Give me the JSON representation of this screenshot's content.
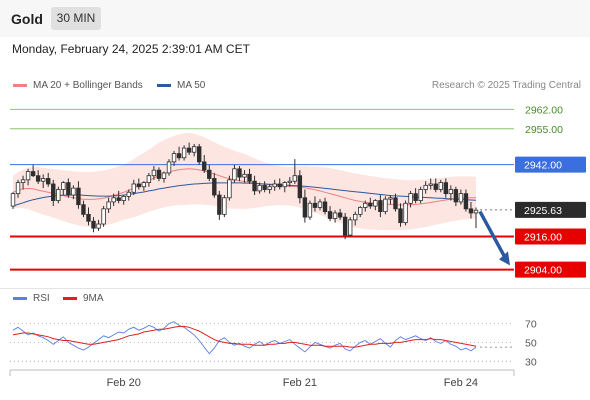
{
  "header": {
    "symbol": "Gold",
    "timeframe": "30 MIN",
    "datetime": "Monday, February 24, 2025 2:39:01 AM CET",
    "credit": "Research © 2025 Trading Central"
  },
  "legend": {
    "ma20_label": "MA 20 + Bollinger Bands",
    "ma50_label": "MA 50",
    "rsi_label": "RSI",
    "ma9_label": "9MA"
  },
  "colors": {
    "bullish": "#2e2e2e",
    "ma20": "#f08080",
    "band_fill": "#fde0dc",
    "ma50": "#2c5aa0",
    "resistance": "#8cc66d",
    "pivot": "#3b6fe0",
    "support": "#e60000",
    "rsi": "#5b7fe0",
    "rsi_ma": "#e02020",
    "arrow": "#2c5aa0"
  },
  "chart_data": [
    {
      "type": "candlestick",
      "x": [
        "Feb 20",
        "Feb 21",
        "Feb 24"
      ],
      "y_ticks": [],
      "levels": [
        {
          "name": "resistance-2",
          "value": 2962.0,
          "label": "2962.00",
          "style": "resistance"
        },
        {
          "name": "resistance-1",
          "value": 2955.0,
          "label": "2955.00",
          "style": "resistance"
        },
        {
          "name": "pivot",
          "value": 2942.0,
          "label": "2942.00",
          "style": "pivot"
        },
        {
          "name": "last-price",
          "value": 2925.63,
          "label": "2925.63",
          "style": "last"
        },
        {
          "name": "support-1",
          "value": 2916.0,
          "label": "2916.00",
          "style": "support"
        },
        {
          "name": "support-2",
          "value": 2904.0,
          "label": "2904.00",
          "style": "support"
        }
      ],
      "ylim": [
        2899.5,
        2966.5
      ],
      "candles": [
        [
          2927.0,
          2932.0,
          2926.0,
          2931.5
        ],
        [
          2931.5,
          2936.5,
          2930.0,
          2935.5
        ],
        [
          2935.5,
          2938.0,
          2933.0,
          2936.5
        ],
        [
          2936.5,
          2940.5,
          2934.5,
          2939.5
        ],
        [
          2939.5,
          2942.0,
          2937.5,
          2938.0
        ],
        [
          2938.0,
          2940.0,
          2935.0,
          2936.0
        ],
        [
          2936.0,
          2938.5,
          2933.5,
          2937.0
        ],
        [
          2937.0,
          2939.0,
          2934.0,
          2935.0
        ],
        [
          2935.0,
          2936.5,
          2927.0,
          2929.0
        ],
        [
          2929.0,
          2934.0,
          2928.0,
          2933.0
        ],
        [
          2933.0,
          2936.0,
          2931.0,
          2935.5
        ],
        [
          2935.5,
          2937.0,
          2930.0,
          2931.0
        ],
        [
          2931.0,
          2934.5,
          2929.5,
          2933.5
        ],
        [
          2933.5,
          2936.0,
          2926.0,
          2927.5
        ],
        [
          2927.5,
          2929.0,
          2923.0,
          2924.0
        ],
        [
          2924.0,
          2926.5,
          2920.0,
          2921.5
        ],
        [
          2921.5,
          2923.0,
          2917.5,
          2919.0
        ],
        [
          2919.0,
          2922.0,
          2918.0,
          2920.5
        ],
        [
          2920.5,
          2927.0,
          2919.5,
          2926.0
        ],
        [
          2926.0,
          2930.0,
          2924.5,
          2928.5
        ],
        [
          2928.5,
          2931.5,
          2927.0,
          2930.0
        ],
        [
          2930.0,
          2932.5,
          2928.0,
          2929.0
        ],
        [
          2929.0,
          2931.0,
          2927.5,
          2930.5
        ],
        [
          2930.5,
          2933.0,
          2929.0,
          2932.0
        ],
        [
          2932.0,
          2936.5,
          2931.0,
          2935.0
        ],
        [
          2935.0,
          2937.0,
          2933.0,
          2934.0
        ],
        [
          2934.0,
          2936.0,
          2932.5,
          2935.5
        ],
        [
          2935.5,
          2939.0,
          2934.0,
          2938.0
        ],
        [
          2938.0,
          2941.5,
          2936.5,
          2940.0
        ],
        [
          2940.0,
          2941.0,
          2936.0,
          2937.0
        ],
        [
          2937.0,
          2939.5,
          2935.5,
          2939.0
        ],
        [
          2939.0,
          2944.0,
          2938.0,
          2943.0
        ],
        [
          2943.0,
          2947.0,
          2941.5,
          2946.0
        ],
        [
          2946.0,
          2948.5,
          2943.5,
          2944.5
        ],
        [
          2944.5,
          2949.0,
          2943.5,
          2948.0
        ],
        [
          2948.0,
          2950.0,
          2945.5,
          2946.5
        ],
        [
          2946.5,
          2949.5,
          2945.0,
          2948.5
        ],
        [
          2948.5,
          2949.5,
          2942.0,
          2943.0
        ],
        [
          2943.0,
          2945.5,
          2939.0,
          2940.0
        ],
        [
          2940.0,
          2942.0,
          2936.0,
          2937.0
        ],
        [
          2937.0,
          2939.0,
          2930.0,
          2931.0
        ],
        [
          2931.0,
          2932.5,
          2922.0,
          2924.0
        ],
        [
          2924.0,
          2931.0,
          2923.0,
          2930.0
        ],
        [
          2930.0,
          2938.0,
          2929.0,
          2936.5
        ],
        [
          2936.5,
          2942.0,
          2935.5,
          2940.5
        ],
        [
          2940.5,
          2941.5,
          2936.0,
          2937.5
        ],
        [
          2937.5,
          2940.0,
          2935.5,
          2938.5
        ],
        [
          2938.5,
          2940.5,
          2935.0,
          2936.0
        ],
        [
          2936.0,
          2938.0,
          2931.0,
          2932.5
        ],
        [
          2932.5,
          2935.5,
          2931.5,
          2934.5
        ],
        [
          2934.5,
          2936.0,
          2932.0,
          2933.0
        ],
        [
          2933.0,
          2935.0,
          2931.5,
          2934.0
        ],
        [
          2934.0,
          2936.5,
          2932.5,
          2935.0
        ],
        [
          2935.0,
          2937.0,
          2933.0,
          2934.0
        ],
        [
          2934.0,
          2936.0,
          2932.0,
          2935.5
        ],
        [
          2935.5,
          2937.5,
          2934.0,
          2936.0
        ],
        [
          2936.0,
          2944.0,
          2935.0,
          2938.0
        ],
        [
          2938.0,
          2940.0,
          2928.0,
          2930.0
        ],
        [
          2930.0,
          2933.0,
          2921.0,
          2923.0
        ],
        [
          2923.0,
          2929.0,
          2922.0,
          2928.0
        ],
        [
          2928.0,
          2930.5,
          2925.0,
          2926.5
        ],
        [
          2926.5,
          2929.5,
          2925.5,
          2928.5
        ],
        [
          2928.5,
          2930.0,
          2924.0,
          2925.0
        ],
        [
          2925.0,
          2927.0,
          2921.5,
          2922.5
        ],
        [
          2922.5,
          2925.5,
          2921.0,
          2924.5
        ],
        [
          2924.5,
          2926.0,
          2922.0,
          2923.0
        ],
        [
          2923.0,
          2924.5,
          2915.0,
          2916.5
        ],
        [
          2916.5,
          2923.0,
          2916.0,
          2922.0
        ],
        [
          2922.0,
          2925.0,
          2920.0,
          2924.0
        ],
        [
          2924.0,
          2927.0,
          2923.0,
          2926.5
        ],
        [
          2926.5,
          2929.0,
          2925.0,
          2928.0
        ],
        [
          2928.0,
          2930.0,
          2926.0,
          2927.0
        ],
        [
          2927.0,
          2929.5,
          2925.5,
          2929.0
        ],
        [
          2929.0,
          2931.0,
          2923.0,
          2925.0
        ],
        [
          2925.0,
          2930.5,
          2924.0,
          2929.5
        ],
        [
          2929.5,
          2931.0,
          2927.5,
          2930.0
        ],
        [
          2930.0,
          2931.5,
          2925.0,
          2926.0
        ],
        [
          2926.0,
          2928.0,
          2919.5,
          2921.0
        ],
        [
          2921.0,
          2929.0,
          2920.0,
          2928.0
        ],
        [
          2928.0,
          2932.5,
          2926.5,
          2931.5
        ],
        [
          2931.5,
          2933.5,
          2928.0,
          2929.0
        ],
        [
          2929.0,
          2934.0,
          2928.0,
          2933.0
        ],
        [
          2933.0,
          2936.0,
          2931.5,
          2934.5
        ],
        [
          2934.5,
          2937.0,
          2933.0,
          2935.0
        ],
        [
          2935.0,
          2937.0,
          2932.0,
          2933.0
        ],
        [
          2933.0,
          2936.5,
          2932.0,
          2935.5
        ],
        [
          2935.5,
          2937.0,
          2930.0,
          2931.5
        ],
        [
          2931.5,
          2934.5,
          2929.0,
          2933.0
        ],
        [
          2933.0,
          2934.0,
          2927.0,
          2928.5
        ],
        [
          2928.5,
          2933.0,
          2927.5,
          2931.5
        ],
        [
          2931.5,
          2933.0,
          2925.0,
          2926.0
        ],
        [
          2926.0,
          2928.5,
          2922.5,
          2924.5
        ],
        [
          2924.5,
          2926.5,
          2919.0,
          2925.5
        ]
      ],
      "ma20": [
        2932.0,
        2932.8,
        2933.2,
        2933.4,
        2933.2,
        2932.8,
        2932.4,
        2932.0,
        2931.6,
        2931.2,
        2930.8,
        2930.4,
        2930.0,
        2929.7,
        2929.5,
        2929.4,
        2929.4,
        2929.6,
        2929.9,
        2930.3,
        2930.8,
        2931.4,
        2932.0,
        2932.7,
        2933.5,
        2934.4,
        2935.3,
        2936.2,
        2937.1,
        2938.0,
        2938.7,
        2939.3,
        2939.8,
        2940.2,
        2940.4,
        2940.5,
        2940.4,
        2940.1,
        2939.7,
        2939.2,
        2938.6,
        2938.0,
        2937.4,
        2936.9,
        2936.5,
        2936.2,
        2935.9,
        2935.6,
        2935.3,
        2935.1,
        2934.9,
        2934.7,
        2934.5,
        2934.4,
        2934.3,
        2934.2,
        2934.1,
        2933.9,
        2933.6,
        2933.3,
        2932.9,
        2932.5,
        2932.0,
        2931.5,
        2931.0,
        2930.5,
        2930.0,
        2929.5,
        2929.0,
        2928.7,
        2928.4,
        2928.2,
        2928.0,
        2927.8,
        2927.7,
        2927.6,
        2927.5,
        2927.4,
        2927.4,
        2927.5,
        2927.6,
        2927.8,
        2928.0,
        2928.3,
        2928.6,
        2928.9,
        2929.2,
        2929.5,
        2929.7,
        2929.9,
        2930.0,
        2930.0,
        2930.0
      ],
      "ma50": [
        2927.0,
        2927.6,
        2928.2,
        2928.8,
        2929.3,
        2929.7,
        2930.1,
        2930.4,
        2930.6,
        2930.8,
        2930.9,
        2931.0,
        2931.0,
        2931.0,
        2930.9,
        2930.8,
        2930.7,
        2930.6,
        2930.6,
        2930.6,
        2930.7,
        2930.8,
        2931.0,
        2931.2,
        2931.5,
        2931.8,
        2932.1,
        2932.5,
        2932.8,
        2933.2,
        2933.5,
        2933.8,
        2934.1,
        2934.4,
        2934.6,
        2934.8,
        2935.0,
        2935.1,
        2935.2,
        2935.3,
        2935.4,
        2935.4,
        2935.4,
        2935.4,
        2935.4,
        2935.4,
        2935.3,
        2935.3,
        2935.2,
        2935.1,
        2935.0,
        2934.9,
        2934.8,
        2934.7,
        2934.6,
        2934.5,
        2934.4,
        2934.3,
        2934.2,
        2934.0,
        2933.8,
        2933.6,
        2933.4,
        2933.2,
        2933.0,
        2932.8,
        2932.6,
        2932.4,
        2932.2,
        2932.0,
        2931.8,
        2931.6,
        2931.4,
        2931.2,
        2931.0,
        2930.8,
        2930.7,
        2930.6,
        2930.5,
        2930.4,
        2930.3,
        2930.2,
        2930.1,
        2930.0,
        2929.9,
        2929.8,
        2929.7,
        2929.6,
        2929.5,
        2929.4,
        2929.3,
        2929.2,
        2929.1
      ],
      "bb_width": [
        6,
        6.5,
        7,
        7.5,
        8,
        8.3,
        8.5,
        8.6,
        8.8,
        9,
        9.2,
        9.4,
        9.6,
        9.7,
        9.8,
        9.9,
        10,
        10,
        10,
        10,
        10,
        10,
        10,
        10.2,
        10.5,
        10.8,
        11,
        11.3,
        11.6,
        12,
        12.2,
        12.4,
        12.6,
        12.8,
        13,
        13,
        12.8,
        12.5,
        12.2,
        11.8,
        11.5,
        11.2,
        11,
        10.8,
        10.5,
        10.2,
        10,
        9.5,
        9,
        8.5,
        8,
        7.6,
        7.3,
        7,
        7,
        7,
        7.2,
        7.5,
        7.8,
        8,
        8.3,
        8.6,
        9,
        9.2,
        9.4,
        9.5,
        9.6,
        9.7,
        9.8,
        9.8,
        9.8,
        9.7,
        9.6,
        9.5,
        9.4,
        9.3,
        9.2,
        9.1,
        9,
        8.9,
        8.8,
        8.7,
        8.6,
        8.5,
        8.4,
        8.3,
        8.2,
        8.1,
        8,
        7.9,
        7.8,
        7.7,
        7.6
      ]
    },
    {
      "type": "line",
      "name": "RSI",
      "y_ticks": [
        "70",
        "50",
        "30"
      ],
      "ylim": [
        25,
        78
      ],
      "rsi": [
        63,
        66,
        62,
        58,
        60,
        57,
        55,
        52,
        48,
        52,
        56,
        50,
        47,
        44,
        42,
        45,
        49,
        53,
        57,
        55,
        58,
        61,
        60,
        64,
        66,
        63,
        65,
        68,
        66,
        62,
        65,
        70,
        72,
        68,
        66,
        62,
        58,
        52,
        45,
        38,
        44,
        52,
        55,
        50,
        47,
        49,
        46,
        44,
        48,
        51,
        47,
        50,
        52,
        49,
        51,
        53,
        48,
        44,
        40,
        45,
        50,
        48,
        46,
        44,
        47,
        49,
        43,
        41,
        46,
        50,
        52,
        48,
        51,
        54,
        49,
        45,
        52,
        56,
        53,
        55,
        57,
        54,
        52,
        55,
        51,
        49,
        52,
        48,
        46,
        42,
        44,
        41,
        45
      ],
      "rsi_ma": [
        58,
        59,
        60,
        60,
        59,
        58,
        57,
        56,
        54,
        53,
        52,
        52,
        51,
        50,
        49,
        48,
        48,
        49,
        50,
        51,
        52,
        53,
        55,
        57,
        58,
        59,
        61,
        62,
        63,
        64,
        64,
        65,
        66,
        67,
        67,
        66,
        64,
        62,
        59,
        56,
        53,
        51,
        50,
        49,
        49,
        48,
        48,
        48,
        47,
        47,
        47,
        48,
        48,
        49,
        49,
        50,
        50,
        49,
        48,
        47,
        47,
        47,
        46,
        46,
        46,
        46,
        46,
        45,
        45,
        46,
        47,
        48,
        48,
        49,
        49,
        49,
        50,
        50,
        51,
        52,
        53,
        53,
        53,
        54,
        53,
        53,
        52,
        51,
        50,
        49,
        48,
        47,
        46
      ]
    }
  ]
}
